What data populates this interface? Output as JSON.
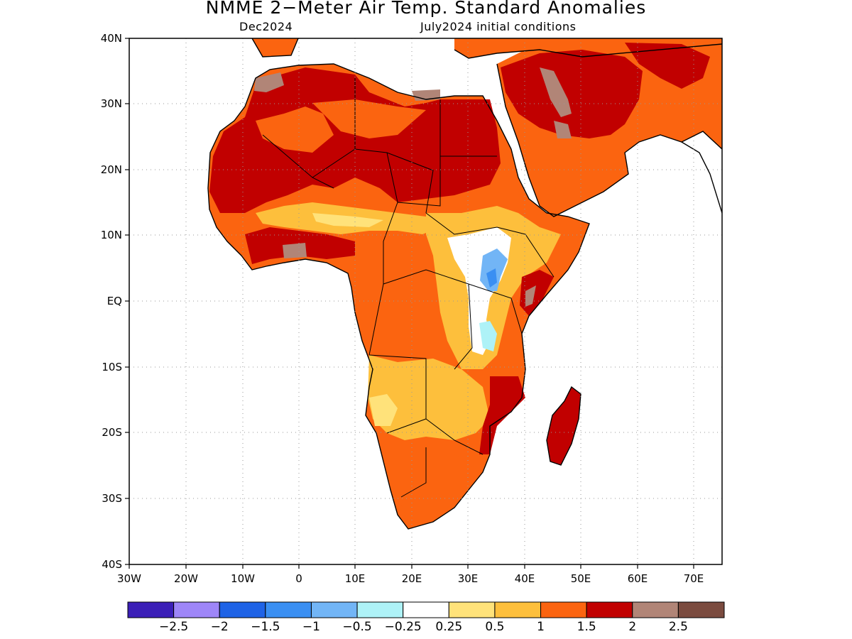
{
  "header": {
    "title": "NMME 2−Meter Air Temp. Standard Anomalies",
    "target_month": "Dec2024",
    "initial_conditions": "July2024 initial conditions"
  },
  "map": {
    "region": "Africa",
    "lon_range": [
      -30,
      75
    ],
    "lat_range": [
      -40,
      40
    ],
    "lat_ticks": [
      "40N",
      "30N",
      "20N",
      "10N",
      "EQ",
      "10S",
      "20S",
      "30S",
      "40S"
    ],
    "lon_ticks": [
      "30W",
      "20W",
      "10W",
      "0",
      "10E",
      "20E",
      "30E",
      "40E",
      "50E",
      "60E",
      "70E"
    ]
  },
  "colorbar": {
    "colors": [
      "#3b1fb7",
      "#9e86f8",
      "#1f63e6",
      "#3a8ff2",
      "#72b5f6",
      "#aef2f7",
      "#ffffff",
      "#ffe27a",
      "#fdbf3c",
      "#fb6410",
      "#c10000",
      "#b18577",
      "#7b4b3f"
    ],
    "labels": [
      "−2.5",
      "−2",
      "−1.5",
      "−1",
      "−0.5",
      "−0.25",
      "0.25",
      "0.5",
      "1",
      "1.5",
      "2",
      "2.5"
    ]
  }
}
